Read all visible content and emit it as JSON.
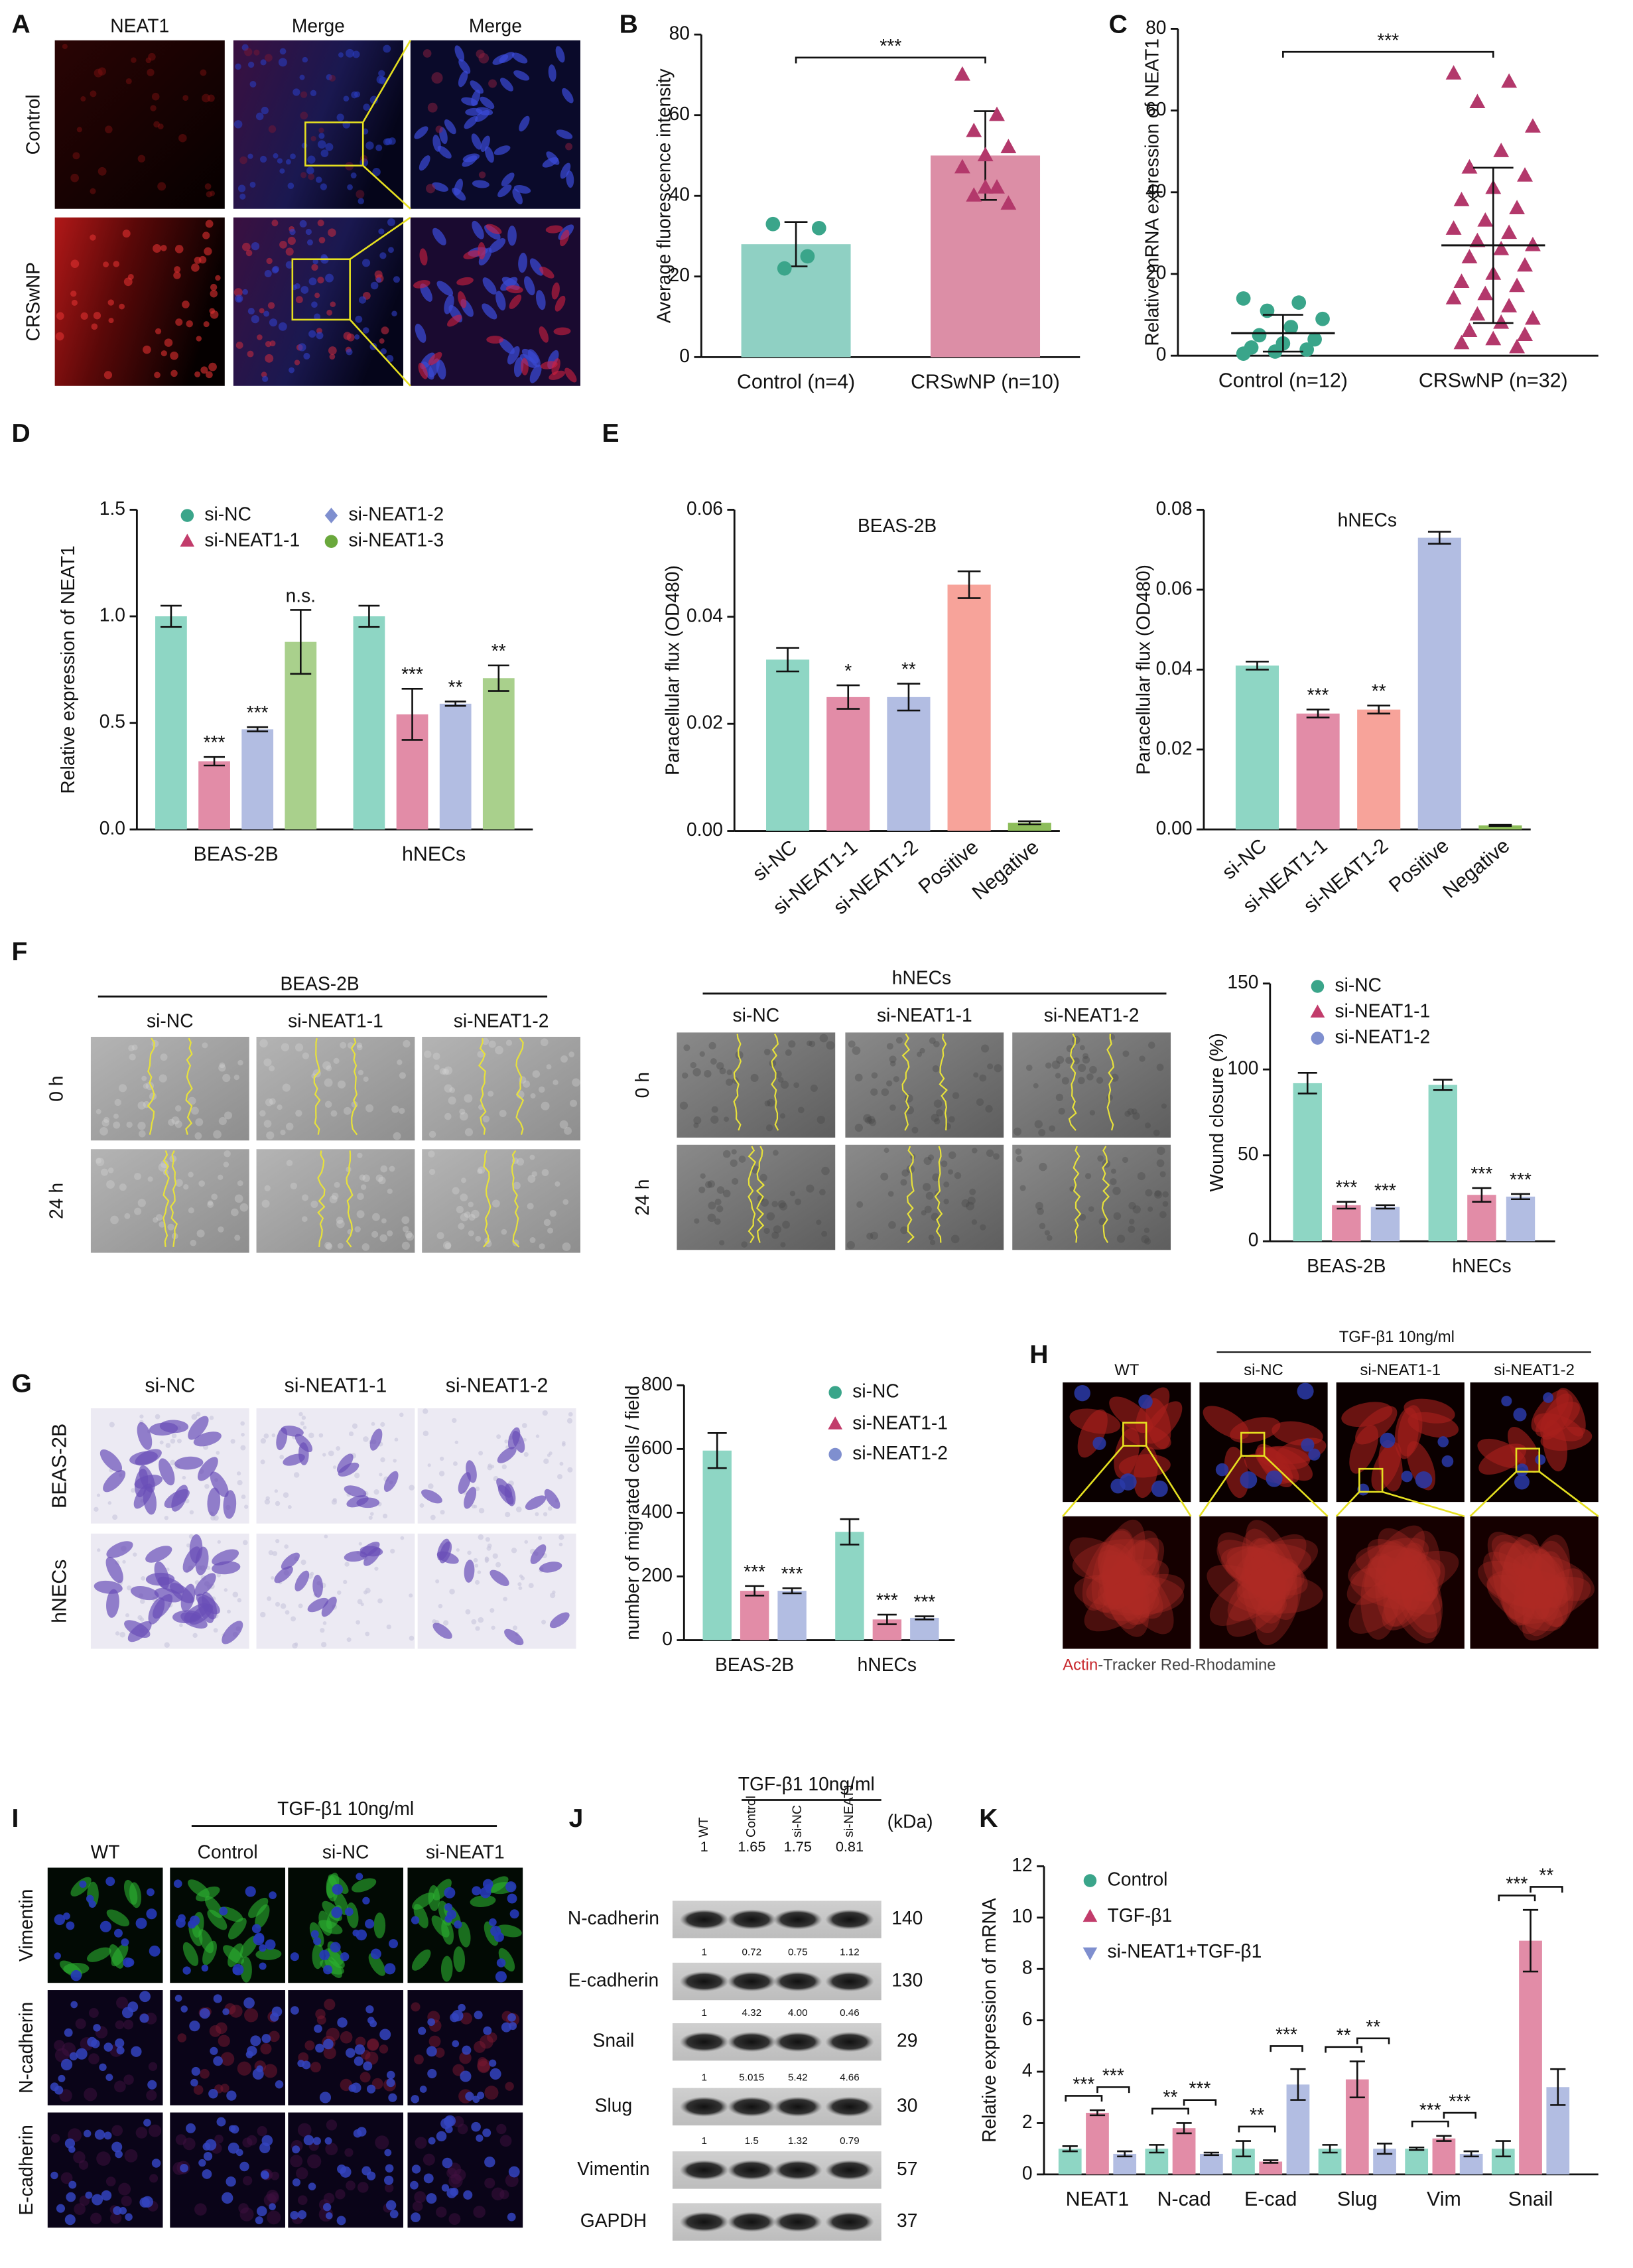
{
  "figure": {
    "A": {
      "label": "A",
      "columns": [
        "NEAT1",
        "Merge",
        "Merge"
      ],
      "rows": [
        "Control",
        "CRSwNP"
      ]
    },
    "F": {
      "label": "F",
      "groups": [
        {
          "title": "BEAS-2B",
          "columns": [
            "si-NC",
            "si-NEAT1-1",
            "si-NEAT1-2"
          ],
          "rows": [
            "0 h",
            "24 h"
          ]
        },
        {
          "title": "hNECs",
          "columns": [
            "si-NC",
            "si-NEAT1-1",
            "si-NEAT1-2"
          ],
          "rows": [
            "0 h",
            "24 h"
          ]
        }
      ]
    },
    "G": {
      "label": "G",
      "columns": [
        "si-NC",
        "si-NEAT1-1",
        "si-NEAT1-2"
      ],
      "rows": [
        "BEAS-2B",
        "hNECs"
      ]
    },
    "H": {
      "label": "H",
      "treatment": "TGF-β1 10ng/ml",
      "columns": [
        "WT",
        "si-NC",
        "si-NEAT1-1",
        "si-NEAT1-2"
      ],
      "caption": [
        "Actin",
        "-Tracker Red-Rhodamine"
      ]
    },
    "I": {
      "label": "I",
      "treatment": "TGF-β1 10ng/ml",
      "columns": [
        "WT",
        "Control",
        "si-NC",
        "si-NEAT1"
      ],
      "rows": [
        "Vimentin",
        "N-cadherin",
        "E-cadherin"
      ]
    },
    "J": {
      "label": "J",
      "treatment": "TGF-β1 10ng/ml",
      "lanes": [
        "WT",
        "Control",
        "si-NC",
        "si-NEAT1"
      ],
      "unit": "(kDa)",
      "blots": [
        {
          "protein": "N-cadherin",
          "kda": 140,
          "ratios": [
            "1",
            "1.65",
            "1.75",
            "0.81"
          ]
        },
        {
          "protein": "E-cadherin",
          "kda": 130,
          "ratios": [
            "1",
            "0.72",
            "0.75",
            "1.12"
          ]
        },
        {
          "protein": "Snail",
          "kda": 29,
          "ratios": [
            "1",
            "4.32",
            "4.00",
            "0.46"
          ]
        },
        {
          "protein": "Slug",
          "kda": 30,
          "ratios": [
            "1",
            "5.015",
            "5.42",
            "4.66"
          ]
        },
        {
          "protein": "Vimentin",
          "kda": 57,
          "ratios": [
            "1",
            "1.5",
            "1.32",
            "0.79"
          ]
        },
        {
          "protein": "GAPDH",
          "kda": 37
        }
      ]
    }
  },
  "chart_data": [
    {
      "label": "B",
      "type": "bar",
      "ylabel": "Average fluorescence intensity",
      "categories": [
        "Control (n=4)",
        "CRSwNP (n=10)"
      ],
      "values": [
        28,
        50
      ],
      "errors": [
        5.5,
        11
      ],
      "points": [
        [
          33,
          25,
          22,
          32
        ],
        [
          70,
          60,
          56,
          52,
          50,
          47,
          42,
          40,
          38,
          42
        ]
      ],
      "colors": [
        "#8fd0c3",
        "#dc8ea6"
      ],
      "point_colors": [
        "#3aa58a",
        "#b3386b"
      ],
      "markers": [
        "circle",
        "triangle"
      ],
      "ylim": [
        0,
        80
      ],
      "yticks": [
        0,
        20,
        40,
        60,
        80
      ],
      "significance": "***"
    },
    {
      "label": "C",
      "type": "dotplot",
      "ylabel": "Relative mRNA expression of NEAT1",
      "categories": [
        "Control  (n=12)",
        "CRSwNP (n=32)"
      ],
      "values": [
        5.5,
        27
      ],
      "errors": [
        4.5,
        19
      ],
      "points": [
        [
          14,
          13,
          11,
          9,
          7,
          5,
          4,
          3,
          2,
          1.5,
          1,
          0.5
        ],
        [
          69,
          67,
          62,
          56,
          50,
          46,
          44,
          41,
          38,
          36,
          33,
          31,
          30,
          28,
          27,
          26,
          24,
          22,
          20,
          18,
          17,
          15,
          14,
          12,
          10,
          9,
          8,
          6,
          5,
          4,
          3,
          2
        ]
      ],
      "point_colors": [
        "#3aa58a",
        "#b3386b"
      ],
      "markers": [
        "circle",
        "triangle"
      ],
      "ylim": [
        0,
        80
      ],
      "yticks": [
        0,
        20,
        40,
        60,
        80
      ],
      "significance": "***"
    },
    {
      "label": "D",
      "type": "bar",
      "ylabel": "Relative  expression of NEAT1",
      "categories": [
        "BEAS-2B",
        "hNECs"
      ],
      "ylim": [
        0,
        1.5
      ],
      "yticks": [
        {
          "value": 0,
          "label": "0.0"
        },
        {
          "value": 0.5,
          "label": "0.5"
        },
        {
          "value": 1,
          "label": "1.0"
        },
        {
          "value": 1.5,
          "label": "1.5"
        }
      ],
      "series": [
        {
          "name": "si-NC",
          "color": "#8ed6c4",
          "marker_color": "#3aa58a",
          "marker": "circle",
          "values": [
            1.0,
            1.0
          ],
          "errors": [
            0.05,
            0.05
          ],
          "annotations": [
            null,
            null
          ]
        },
        {
          "name": "si-NEAT1-1",
          "color": "#e28ca7",
          "marker_color": "#c23c6b",
          "marker": "triangle",
          "values": [
            0.32,
            0.54
          ],
          "errors": [
            0.02,
            0.12
          ],
          "annotations": [
            "***",
            "***"
          ]
        },
        {
          "name": "si-NEAT1-2",
          "color": "#b2bde2",
          "marker_color": "#7f8fcf",
          "marker": "diamond",
          "values": [
            0.47,
            0.59
          ],
          "errors": [
            0.01,
            0.01
          ],
          "annotations": [
            "***",
            "**"
          ]
        },
        {
          "name": "si-NEAT1-3",
          "color": "#a9d08c",
          "marker_color": "#6aa83c",
          "marker": "circle",
          "values": [
            0.88,
            0.71
          ],
          "errors": [
            0.15,
            0.06
          ],
          "annotations": [
            "n.s.",
            "**"
          ]
        }
      ]
    },
    {
      "label": "E",
      "type": "bar",
      "title": "BEAS-2B",
      "ylabel": "Paracellular flux (OD480)",
      "categories": [
        "si-NC",
        "si-NEAT1-1",
        "si-NEAT1-2",
        "Positive",
        "Negative"
      ],
      "values": [
        0.032,
        0.025,
        0.025,
        0.046,
        0.0015
      ],
      "errors": [
        0.0022,
        0.0022,
        0.0025,
        0.0025,
        0.0003
      ],
      "annotations": [
        null,
        "*",
        "**",
        null,
        null
      ],
      "colors": [
        "#8ed6c4",
        "#e28ca7",
        "#b2bde2",
        "#f7a39a",
        "#8dbd5a"
      ],
      "ylim": [
        0,
        0.06
      ],
      "yticks": [
        {
          "value": 0,
          "label": "0.00"
        },
        {
          "value": 0.02,
          "label": "0.02"
        },
        {
          "value": 0.04,
          "label": "0.04"
        },
        {
          "value": 0.06,
          "label": "0.06"
        }
      ]
    },
    {
      "type": "bar",
      "title": "hNECs",
      "ylabel": "Paracellular flux (OD480)",
      "categories": [
        "si-NC",
        "si-NEAT1-1",
        "si-NEAT1-2",
        "Positive",
        "Negative"
      ],
      "values": [
        0.041,
        0.029,
        0.03,
        0.073,
        0.001
      ],
      "errors": [
        0.001,
        0.001,
        0.001,
        0.0015,
        0.0002
      ],
      "annotations": [
        null,
        "***",
        "**",
        null,
        null
      ],
      "colors": [
        "#8ed6c4",
        "#e28ca7",
        "#f7a39a",
        "#b2bde2",
        "#8dbd5a"
      ],
      "ylim": [
        0,
        0.08
      ],
      "yticks": [
        {
          "value": 0,
          "label": "0.00"
        },
        {
          "value": 0.02,
          "label": "0.02"
        },
        {
          "value": 0.04,
          "label": "0.04"
        },
        {
          "value": 0.06,
          "label": "0.06"
        },
        {
          "value": 0.08,
          "label": "0.08"
        }
      ]
    },
    {
      "type": "bar",
      "ylabel": "Wound closure (%)",
      "categories": [
        "BEAS-2B",
        "hNECs"
      ],
      "ylim": [
        0,
        150
      ],
      "yticks": [
        0,
        50,
        100,
        150
      ],
      "series": [
        {
          "name": "si-NC",
          "color": "#8ed6c4",
          "marker_color": "#3aa58a",
          "marker": "circle",
          "values": [
            92,
            91
          ],
          "errors": [
            6,
            3
          ]
        },
        {
          "name": "si-NEAT1-1",
          "color": "#e28ca7",
          "marker_color": "#c23c6b",
          "marker": "triangle",
          "values": [
            21,
            27
          ],
          "errors": [
            2,
            4
          ],
          "annotations": [
            "***",
            "***"
          ]
        },
        {
          "name": "si-NEAT1-2",
          "color": "#b2bde2",
          "marker_color": "#7f8fcf",
          "marker": "circle",
          "values": [
            20,
            26
          ],
          "errors": [
            1,
            1.5
          ],
          "annotations": [
            "***",
            "***"
          ]
        }
      ]
    },
    {
      "type": "bar",
      "ylabel": "number of  migrated cells / field",
      "categories": [
        "BEAS-2B",
        "hNECs"
      ],
      "ylim": [
        0,
        800
      ],
      "yticks": [
        0,
        200,
        400,
        600,
        800
      ],
      "series": [
        {
          "name": "si-NC",
          "color": "#8ed6c4",
          "marker_color": "#3aa58a",
          "marker": "circle",
          "values": [
            595,
            340
          ],
          "errors": [
            55,
            40
          ]
        },
        {
          "name": "si-NEAT1-1",
          "color": "#e28ca7",
          "marker_color": "#c23c6b",
          "marker": "triangle",
          "values": [
            155,
            65
          ],
          "errors": [
            15,
            15
          ],
          "annotations": [
            "***",
            "***"
          ]
        },
        {
          "name": "si-NEAT1-2",
          "color": "#b2bde2",
          "marker_color": "#7f8fcf",
          "marker": "circle",
          "values": [
            155,
            70
          ],
          "errors": [
            8,
            5
          ],
          "annotations": [
            "***",
            "***"
          ]
        }
      ]
    },
    {
      "label": "K",
      "type": "bar",
      "ylabel": "Relative expression of mRNA",
      "categories": [
        "NEAT1",
        "N-cad",
        "E-cad",
        "Slug",
        "Vim",
        "Snail"
      ],
      "ylim": [
        0,
        12
      ],
      "yticks": [
        0,
        2,
        4,
        6,
        8,
        10,
        12
      ],
      "series": [
        {
          "name": "Control",
          "color": "#8ed6c4",
          "marker_color": "#3aa58a",
          "marker": "circle",
          "values": [
            1,
            1,
            1,
            1,
            1,
            1
          ],
          "errors": [
            0.1,
            0.15,
            0.3,
            0.15,
            0.05,
            0.3
          ]
        },
        {
          "name": "TGF-β1",
          "color": "#e28ca7",
          "marker_color": "#c23c6b",
          "marker": "triangle",
          "values": [
            2.4,
            1.8,
            0.5,
            3.7,
            1.4,
            9.1
          ],
          "errors": [
            0.1,
            0.2,
            0.05,
            0.7,
            0.1,
            1.2
          ]
        },
        {
          "name": "si-NEAT1+TGF-β1",
          "color": "#b2bde2",
          "marker_color": "#7f8fcf",
          "marker": "triangle-down",
          "values": [
            0.8,
            0.8,
            3.5,
            1.0,
            0.8,
            3.4
          ],
          "errors": [
            0.1,
            0.05,
            0.6,
            0.2,
            0.1,
            0.7
          ]
        }
      ],
      "significance": [
        [
          "***",
          "***"
        ],
        [
          "**",
          "***"
        ],
        [
          "**",
          "***"
        ],
        [
          "**",
          "**"
        ],
        [
          "***",
          "***"
        ],
        [
          "***",
          "**"
        ]
      ]
    }
  ]
}
